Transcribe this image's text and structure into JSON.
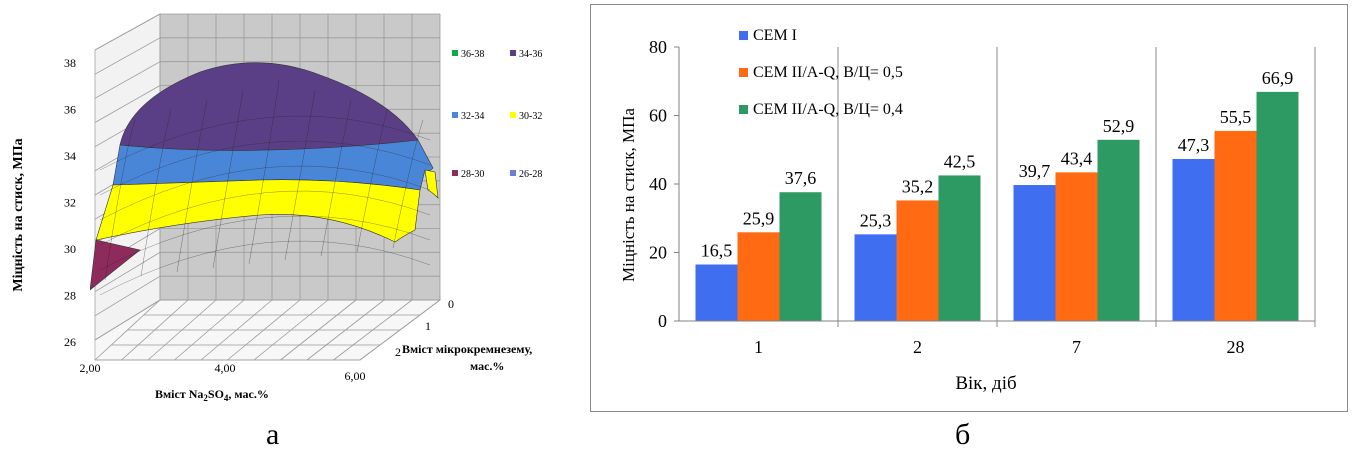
{
  "chart_data": [
    {
      "type": "surface3d",
      "ylabel": "Міцність на стиск, МПа",
      "xlabel_prefix": "Вміст Na",
      "xlabel_sub1": "2",
      "xlabel_mid": "SO",
      "xlabel_sub2": "4",
      "xlabel_suffix": ", мас.%",
      "zlabel_line1": "Вміст мікрокремнезему,",
      "zlabel_line2": "мас.%",
      "x_ticks": [
        "2,00",
        "4,00",
        "6,00"
      ],
      "y_ticks": [
        "26",
        "28",
        "30",
        "32",
        "34",
        "36",
        "38"
      ],
      "depth_ticks": [
        "0",
        "1",
        "2"
      ],
      "ylim": [
        26,
        38
      ],
      "legend": [
        {
          "label": "36-38",
          "color": "#13a84b"
        },
        {
          "label": "34-36",
          "color": "#5b3f86"
        },
        {
          "label": "32-34",
          "color": "#4a86d8"
        },
        {
          "label": "30-32",
          "color": "#ffff00"
        },
        {
          "label": "28-30",
          "color": "#8e2a5c"
        },
        {
          "label": "26-28",
          "color": "#6b7fd6"
        }
      ],
      "bands": [
        {
          "range": "36-38",
          "color": "#13a84b"
        },
        {
          "range": "34-36",
          "color": "#5b3f86"
        },
        {
          "range": "32-34",
          "color": "#4a86d8"
        },
        {
          "range": "30-32",
          "color": "#ffff00"
        },
        {
          "range": "28-30",
          "color": "#8e2a5c"
        }
      ]
    },
    {
      "type": "bar",
      "categories": [
        "1",
        "2",
        "7",
        "28"
      ],
      "series": [
        {
          "name": "CEM I",
          "color": "#3f6ff0",
          "values": [
            16.5,
            25.3,
            39.7,
            47.3
          ],
          "labels": [
            "16,5",
            "25,3",
            "39,7",
            "47,3"
          ]
        },
        {
          "name": "CEM II/A-Q, В/Ц= 0,5",
          "color": "#ff6a12",
          "values": [
            25.9,
            35.2,
            43.4,
            55.5
          ],
          "labels": [
            "25,9",
            "35,2",
            "43,4",
            "55,5"
          ]
        },
        {
          "name": "CEM II/A-Q, В/Ц= 0,4",
          "color": "#2e9a63",
          "values": [
            37.6,
            42.5,
            52.9,
            66.9
          ],
          "labels": [
            "37,6",
            "42,5",
            "52,9",
            "66,9"
          ]
        }
      ],
      "ylim": [
        0,
        80
      ],
      "y_ticks": [
        "0",
        "20",
        "40",
        "60",
        "80"
      ],
      "ylabel": "Міцність на стиск, МПа",
      "xlabel": "Вік, діб",
      "legend_position": "top-left"
    }
  ],
  "panel_labels": {
    "left": "а",
    "right": "б"
  }
}
